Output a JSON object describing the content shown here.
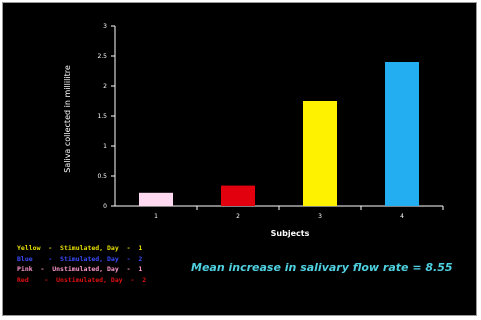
{
  "chart_data": {
    "type": "bar",
    "title": "",
    "xlabel": "Subjects",
    "ylabel": "Saliva collected in millilitre",
    "ylim": [
      0,
      3
    ],
    "yticks": [
      "0",
      "0.5",
      "1",
      "1.5",
      "2",
      "2.5",
      "3"
    ],
    "categories": [
      "1",
      "2",
      "3",
      "4"
    ],
    "values": [
      0.22,
      0.34,
      1.75,
      2.4
    ],
    "colors": [
      "#ffd9f0",
      "#e3000e",
      "#fff200",
      "#22aef0"
    ],
    "grid": false
  },
  "legend": [
    {
      "label": "Yellow  -  Stimulated, Day  -  1",
      "color": "#e8e000"
    },
    {
      "label": "Blue    -  Stimulated, Day  -  2",
      "color": "#3a4cff"
    },
    {
      "label": "Pink  -  Unstimulated, Day  -  1",
      "color": "#ff9ad0"
    },
    {
      "label": "Red    -  Unstimulated, Day  -  2",
      "color": "#e01010"
    }
  ],
  "summary": "Mean increase in salivary flow rate = 8.55"
}
